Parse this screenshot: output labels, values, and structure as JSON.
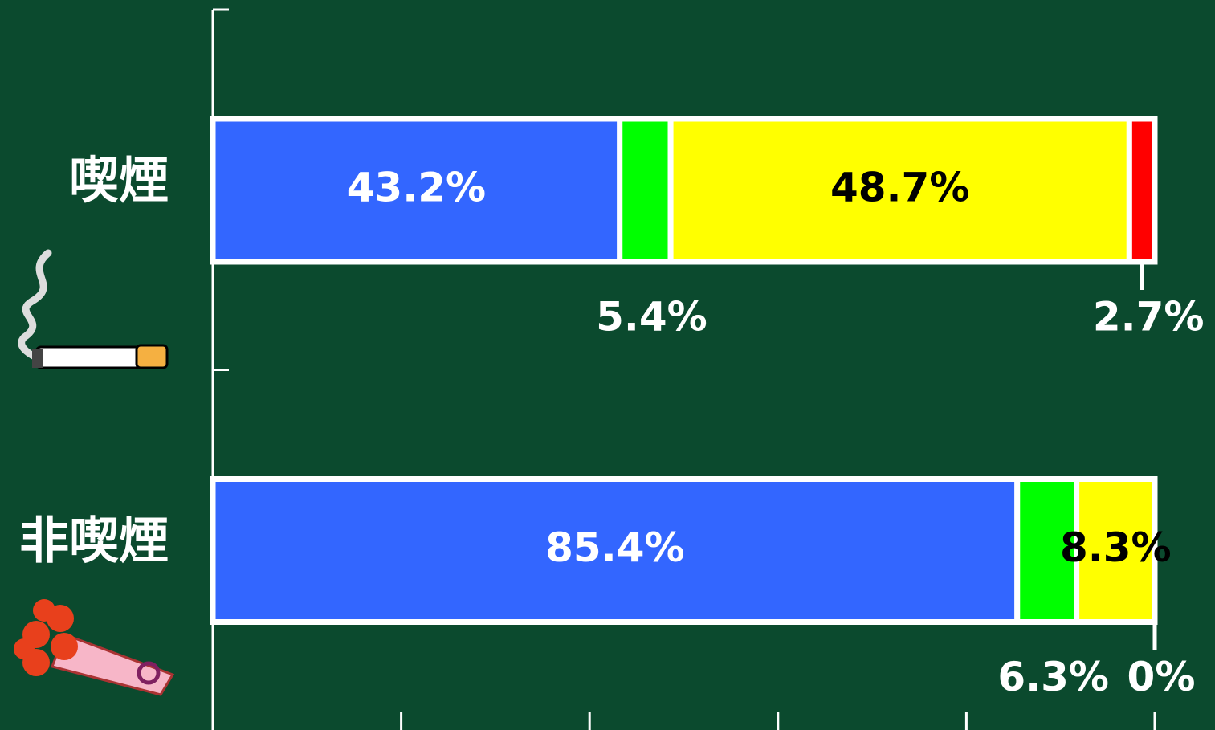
{
  "chart_data": {
    "type": "bar",
    "orientation": "horizontal",
    "stacked": true,
    "categories": [
      "喫煙",
      "非喫煙"
    ],
    "series": [
      {
        "color": "#3366ff",
        "values": [
          43.2,
          85.4
        ],
        "value_labels": [
          "43.2%",
          "85.4%"
        ]
      },
      {
        "color": "#00ff00",
        "values": [
          5.4,
          6.3
        ],
        "value_labels": [
          "5.4%",
          "6.3%"
        ]
      },
      {
        "color": "#ffff00",
        "values": [
          48.7,
          8.3
        ],
        "value_labels": [
          "48.7%",
          "8.3%"
        ]
      },
      {
        "color": "#ff0000",
        "values": [
          2.7,
          0
        ],
        "value_labels": [
          "2.7%",
          "0%"
        ]
      }
    ],
    "xlim": [
      0,
      100
    ],
    "xticks": [
      0,
      20,
      40,
      60,
      80,
      100
    ]
  }
}
